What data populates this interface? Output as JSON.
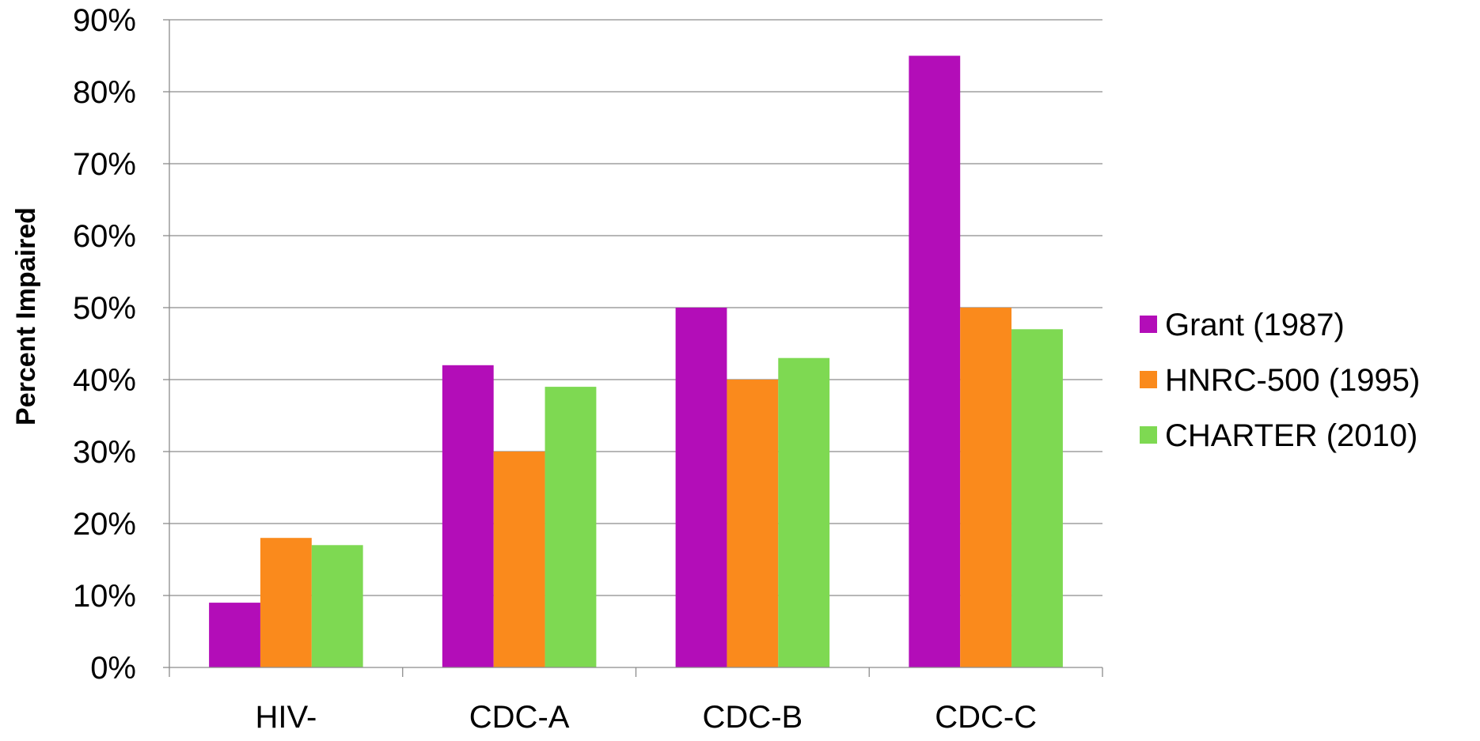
{
  "chart_data": {
    "type": "bar",
    "title": "",
    "xlabel": "",
    "ylabel": "Percent Impaired",
    "ylim": [
      0,
      90
    ],
    "yticks": [
      0,
      10,
      20,
      30,
      40,
      50,
      60,
      70,
      80,
      90
    ],
    "ytick_labels": [
      "0%",
      "10%",
      "20%",
      "30%",
      "40%",
      "50%",
      "60%",
      "70%",
      "80%",
      "90%"
    ],
    "categories": [
      "HIV-",
      "CDC-A",
      "CDC-B",
      "CDC-C"
    ],
    "series": [
      {
        "name": "Grant (1987)",
        "color": "#b30db8",
        "values": [
          9,
          42,
          50,
          85
        ]
      },
      {
        "name": "HNRC-500 (1995)",
        "color": "#fa8a1c",
        "values": [
          18,
          30,
          40,
          50
        ]
      },
      {
        "name": "CHARTER (2010)",
        "color": "#7ed952",
        "values": [
          17,
          39,
          43,
          47
        ]
      }
    ],
    "grid": true,
    "legend_position": "right"
  }
}
